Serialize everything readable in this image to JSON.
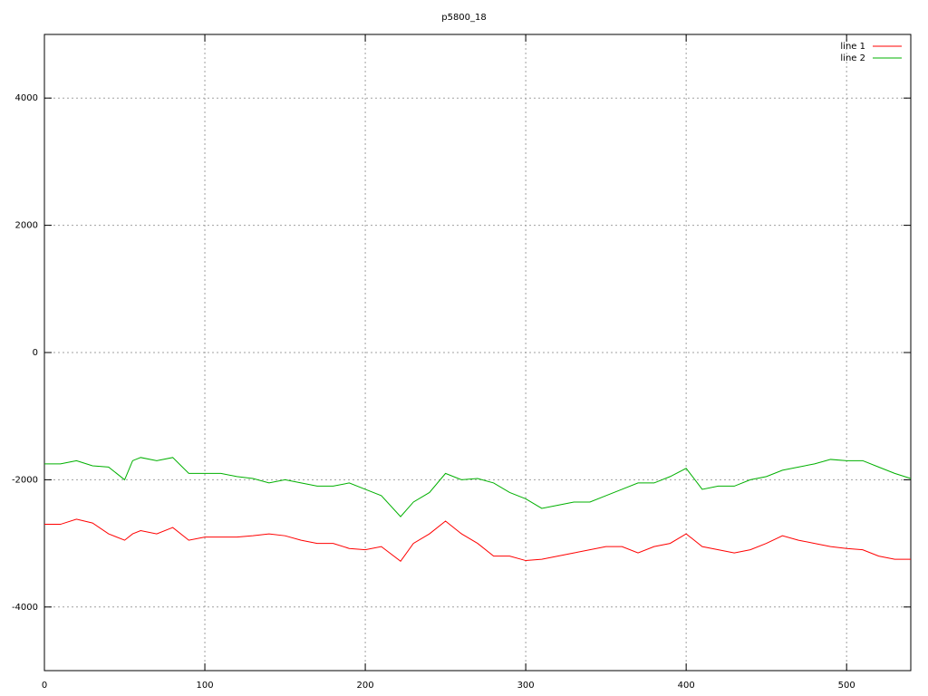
{
  "chart_data": {
    "type": "line",
    "title": "p5800_18",
    "x": [
      0,
      10,
      20,
      30,
      40,
      50,
      55,
      60,
      70,
      80,
      90,
      100,
      110,
      120,
      130,
      140,
      150,
      160,
      170,
      180,
      190,
      200,
      210,
      222,
      230,
      240,
      250,
      260,
      270,
      280,
      290,
      300,
      310,
      320,
      330,
      340,
      350,
      360,
      370,
      380,
      390,
      400,
      410,
      420,
      430,
      440,
      450,
      460,
      470,
      480,
      490,
      500,
      510,
      520,
      530,
      540
    ],
    "series": [
      {
        "name": "line 1",
        "color": "#ff0000",
        "values": [
          -2700,
          -2700,
          -2620,
          -2680,
          -2850,
          -2950,
          -2850,
          -2800,
          -2850,
          -2750,
          -2950,
          -2900,
          -2900,
          -2900,
          -2880,
          -2850,
          -2880,
          -2950,
          -3000,
          -3000,
          -3080,
          -3100,
          -3050,
          -3280,
          -3000,
          -2850,
          -2650,
          -2850,
          -3000,
          -3200,
          -3200,
          -3270,
          -3250,
          -3200,
          -3150,
          -3100,
          -3050,
          -3050,
          -3150,
          -3050,
          -3000,
          -2850,
          -3050,
          -3100,
          -3150,
          -3100,
          -3000,
          -2880,
          -2950,
          -3000,
          -3050,
          -3080,
          -3100,
          -3200,
          -3250,
          -3250
        ]
      },
      {
        "name": "line 2",
        "color": "#00b000",
        "values": [
          -1750,
          -1750,
          -1700,
          -1780,
          -1800,
          -2000,
          -1700,
          -1650,
          -1700,
          -1650,
          -1900,
          -1900,
          -1900,
          -1950,
          -1980,
          -2050,
          -2000,
          -2050,
          -2100,
          -2100,
          -2050,
          -2150,
          -2250,
          -2580,
          -2350,
          -2200,
          -1900,
          -2000,
          -1980,
          -2050,
          -2200,
          -2300,
          -2450,
          -2400,
          -2350,
          -2350,
          -2250,
          -2150,
          -2050,
          -2050,
          -1950,
          -1820,
          -2150,
          -2100,
          -2100,
          -2000,
          -1950,
          -1850,
          -1800,
          -1750,
          -1680,
          -1700,
          -1700,
          -1800,
          -1900,
          -1980
        ]
      }
    ],
    "xlim": [
      0,
      540
    ],
    "xticks": [
      0,
      100,
      200,
      300,
      400,
      500
    ],
    "ylim": [
      -5000,
      5000
    ],
    "yticks": [
      -4000,
      -2000,
      0,
      2000,
      4000
    ],
    "grid": true,
    "legend": "top-right"
  }
}
